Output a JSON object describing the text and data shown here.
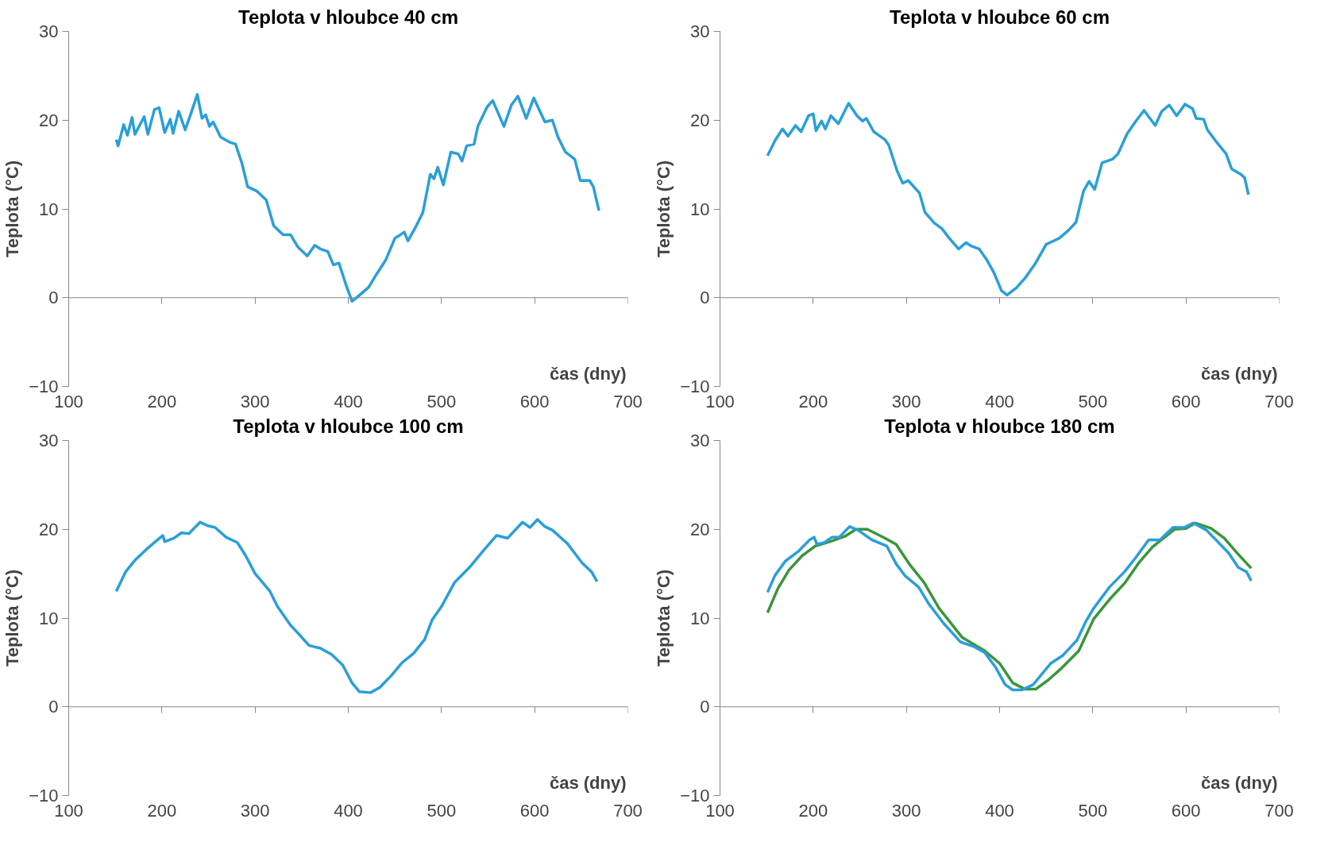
{
  "chart_data": [
    {
      "type": "line",
      "title": "Teplota v hloubce 40 cm",
      "ref_lines": [
        {
          "axis": "y",
          "value": 0
        }
      ],
      "xlabel": "čas (dny)",
      "ylabel": "Teplota (°C)",
      "xlim": [
        100,
        700
      ],
      "xticks": [
        100,
        200,
        300,
        400,
        500,
        600,
        700
      ],
      "ylim": [
        -10,
        30
      ],
      "yticks": [
        -10,
        0,
        10,
        20,
        30
      ],
      "grid": false,
      "series": [
        {
          "color": "#2a9fd8",
          "x": [
            151,
            153,
            159,
            163,
            168,
            171,
            176,
            181,
            185,
            192,
            197,
            203,
            209,
            212,
            218,
            225,
            231,
            238,
            243,
            247,
            251,
            255,
            263,
            273,
            279,
            286,
            292,
            302,
            312,
            320,
            330,
            338,
            346,
            356,
            364,
            370,
            378,
            384,
            390,
            398,
            404,
            410,
            422,
            430,
            440,
            450,
            456,
            460,
            464,
            472,
            480,
            488,
            492,
            496,
            502,
            510,
            518,
            522,
            527,
            535,
            539,
            549,
            555,
            567,
            575,
            582,
            591,
            599,
            607,
            611,
            619,
            625,
            633,
            643,
            649,
            659,
            663,
            669
          ],
          "values": [
            17.8,
            17.1,
            19.5,
            18.3,
            20.3,
            18.4,
            19.4,
            20.4,
            18.4,
            21.2,
            21.4,
            18.6,
            20.1,
            18.5,
            21,
            18.9,
            20.7,
            22.9,
            20.2,
            20.6,
            19.3,
            19.8,
            18.1,
            17.5,
            17.3,
            15.1,
            12.5,
            12,
            11,
            8.1,
            7.1,
            7.1,
            5.7,
            4.7,
            5.9,
            5.5,
            5.2,
            3.7,
            3.9,
            1.3,
            -0.4,
            0.1,
            1.2,
            2.6,
            4.2,
            6.7,
            7.1,
            7.4,
            6.4,
            7.9,
            9.6,
            13.9,
            13.4,
            14.7,
            12.7,
            16.4,
            16.2,
            15.4,
            17.1,
            17.3,
            19.3,
            21.5,
            22.2,
            19.3,
            21.7,
            22.7,
            20.2,
            22.5,
            20.7,
            19.8,
            20,
            18.1,
            16.4,
            15.6,
            13.2,
            13.2,
            12.5,
            9.8
          ]
        }
      ]
    },
    {
      "type": "line",
      "title": "Teplota v hloubce 60 cm",
      "ref_lines": [
        {
          "axis": "y",
          "value": 0
        }
      ],
      "xlabel": "čas (dny)",
      "ylabel": "Teplota (°C)",
      "xlim": [
        100,
        700
      ],
      "xticks": [
        100,
        200,
        300,
        400,
        500,
        600,
        700
      ],
      "ylim": [
        -10,
        30
      ],
      "yticks": [
        -10,
        0,
        10,
        20,
        30
      ],
      "grid": false,
      "series": [
        {
          "color": "#2a9fd8",
          "x": [
            151,
            159,
            167,
            173,
            181,
            187,
            195,
            200,
            203,
            209,
            213,
            219,
            227,
            238,
            247,
            253,
            257,
            265,
            277,
            281,
            290,
            296,
            302,
            314,
            320,
            330,
            338,
            346,
            356,
            364,
            370,
            378,
            386,
            394,
            402,
            408,
            418,
            428,
            438,
            450,
            458,
            464,
            474,
            482,
            490,
            496,
            502,
            510,
            521,
            527,
            537,
            547,
            555,
            567,
            574,
            582,
            590,
            599,
            607,
            611,
            619,
            623,
            633,
            643,
            649,
            659,
            663,
            667
          ],
          "values": [
            16,
            17.7,
            19,
            18.2,
            19.4,
            18.7,
            20.5,
            20.7,
            18.8,
            19.9,
            19,
            20.5,
            19.6,
            21.9,
            20.5,
            19.9,
            20.2,
            18.7,
            17.8,
            17.2,
            14.3,
            12.9,
            13.2,
            11.8,
            9.6,
            8.4,
            7.8,
            6.7,
            5.5,
            6.2,
            5.8,
            5.5,
            4.3,
            2.8,
            0.8,
            0.3,
            1.1,
            2.3,
            3.8,
            6,
            6.4,
            6.7,
            7.6,
            8.5,
            12,
            13.1,
            12.2,
            15.2,
            15.6,
            16.2,
            18.5,
            20,
            21.1,
            19.4,
            21,
            21.7,
            20.5,
            21.8,
            21.3,
            20.2,
            20.1,
            18.9,
            17.5,
            16.2,
            14.5,
            13.9,
            13.5,
            11.6
          ]
        }
      ]
    },
    {
      "type": "line",
      "title": "Teplota v hloubce 100 cm",
      "ref_lines": [
        {
          "axis": "y",
          "value": 0
        }
      ],
      "xlabel": "čas (dny)",
      "ylabel": "Teplota (°C)",
      "xlim": [
        100,
        700
      ],
      "xticks": [
        100,
        200,
        300,
        400,
        500,
        600,
        700
      ],
      "ylim": [
        -10,
        30
      ],
      "yticks": [
        -10,
        0,
        10,
        20,
        30
      ],
      "grid": false,
      "series": [
        {
          "color": "#2a9fd8",
          "x": [
            151,
            161,
            171,
            183,
            193,
            201,
            203,
            213,
            221,
            229,
            241,
            249,
            257,
            269,
            281,
            290,
            300,
            316,
            324,
            338,
            346,
            358,
            370,
            382,
            394,
            404,
            412,
            424,
            434,
            446,
            458,
            470,
            482,
            490,
            500,
            514,
            530,
            545,
            559,
            571,
            587,
            595,
            603,
            611,
            619,
            635,
            651,
            661,
            667
          ],
          "values": [
            13,
            15.2,
            16.5,
            17.7,
            18.6,
            19.3,
            18.6,
            19,
            19.6,
            19.5,
            20.8,
            20.4,
            20.2,
            19.1,
            18.5,
            17,
            15,
            13,
            11.3,
            9.2,
            8.3,
            6.9,
            6.6,
            5.9,
            4.7,
            2.7,
            1.7,
            1.6,
            2.2,
            3.5,
            5,
            6,
            7.6,
            9.8,
            11.3,
            14,
            15.7,
            17.6,
            19.3,
            19,
            20.8,
            20.2,
            21.1,
            20.3,
            19.9,
            18.4,
            16.2,
            15.2,
            14.1
          ]
        }
      ]
    },
    {
      "type": "line",
      "title": "Teplota v hloubce 180 cm",
      "ref_lines": [
        {
          "axis": "y",
          "value": 0
        }
      ],
      "xlabel": "čas (dny)",
      "ylabel": "Teplota (°C)",
      "xlim": [
        100,
        700
      ],
      "xticks": [
        100,
        200,
        300,
        400,
        500,
        600,
        700
      ],
      "ylim": [
        -10,
        30
      ],
      "yticks": [
        -10,
        0,
        10,
        20,
        30
      ],
      "grid": false,
      "series": [
        {
          "color": "#3a963a",
          "x": [
            151,
            162,
            174,
            188,
            202,
            218,
            234,
            246,
            258,
            275,
            289,
            303,
            319,
            335,
            360,
            384,
            400,
            414,
            427,
            439,
            452,
            467,
            485,
            501,
            518,
            534,
            550,
            564,
            576,
            588,
            600,
            610,
            627,
            641,
            655,
            670
          ],
          "values": [
            10.6,
            13.3,
            15.4,
            17,
            18.1,
            18.6,
            19.2,
            20,
            20,
            19.1,
            18.3,
            16.1,
            14,
            11.1,
            7.8,
            6.3,
            4.9,
            2.7,
            2,
            2,
            3,
            4.4,
            6.3,
            9.9,
            12.1,
            13.9,
            16.3,
            18,
            19,
            20,
            20.1,
            20.7,
            20.1,
            19,
            17.3,
            15.6
          ]
        },
        {
          "color": "#2a9fd8",
          "x": [
            151,
            159,
            170,
            184,
            196,
            201,
            204,
            212,
            220,
            228,
            239,
            248,
            263,
            279,
            289,
            299,
            313,
            324,
            340,
            358,
            372,
            384,
            396,
            406,
            414,
            424,
            436,
            455,
            468,
            483,
            493,
            501,
            518,
            534,
            546,
            560,
            572,
            586,
            598,
            608,
            622,
            634,
            646,
            656,
            665,
            670
          ],
          "values": [
            12.9,
            14.8,
            16.4,
            17.5,
            18.8,
            19.1,
            18.3,
            18.5,
            19.1,
            19.1,
            20.3,
            19.9,
            18.8,
            18.1,
            16.1,
            14.7,
            13.5,
            11.6,
            9.4,
            7.3,
            6.8,
            6.1,
            4.4,
            2.5,
            1.9,
            1.9,
            2.5,
            4.9,
            5.8,
            7.5,
            9.7,
            11.1,
            13.5,
            15.2,
            16.8,
            18.8,
            18.8,
            20.2,
            20.2,
            20.7,
            19.9,
            18.6,
            17.3,
            15.7,
            15.2,
            14.2
          ]
        }
      ]
    }
  ]
}
